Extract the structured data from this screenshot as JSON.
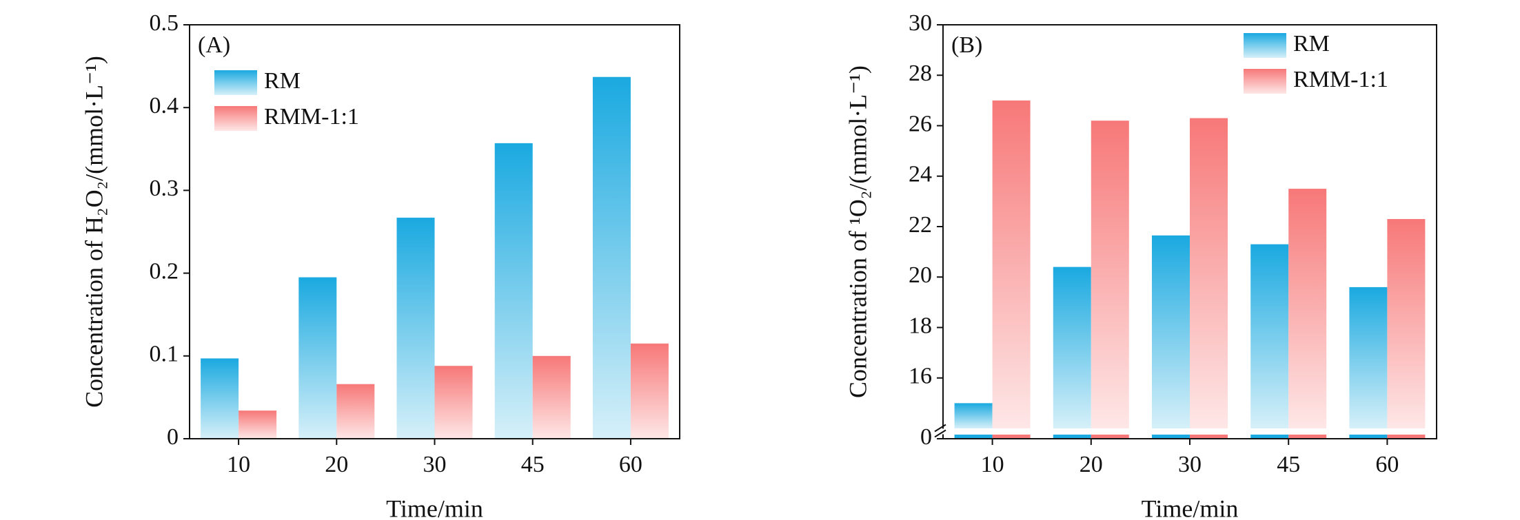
{
  "chart_data": [
    {
      "type": "bar",
      "panel_label": "(A)",
      "x_label": "Time/min",
      "y_label": "Concentration of H₂O₂/(mmol·L⁻¹)",
      "categories": [
        "10",
        "20",
        "30",
        "45",
        "60"
      ],
      "series": [
        {
          "name": "RM",
          "color": "#1aa9e0",
          "values": [
            0.097,
            0.195,
            0.267,
            0.357,
            0.437
          ]
        },
        {
          "name": "RMM-1:1",
          "color": "#f77878",
          "values": [
            0.034,
            0.066,
            0.088,
            0.1,
            0.115
          ]
        }
      ],
      "ylim": [
        0,
        0.5
      ],
      "yticks": [
        0,
        0.1,
        0.2,
        0.3,
        0.4,
        0.5
      ],
      "legend": "upper left"
    },
    {
      "type": "bar",
      "panel_label": "(B)",
      "x_label": "Time/min",
      "y_label": "Concentration of ¹O₂/(mmol·L⁻¹)",
      "categories": [
        "10",
        "20",
        "30",
        "45",
        "60"
      ],
      "series": [
        {
          "name": "RM",
          "color": "#1aa9e0",
          "values": [
            15.0,
            20.4,
            21.65,
            21.3,
            19.6
          ]
        },
        {
          "name": "RMM-1:1",
          "color": "#f77878",
          "values": [
            27.0,
            26.2,
            26.3,
            23.5,
            22.3
          ]
        }
      ],
      "ylim": [
        0,
        30
      ],
      "ybreak": [
        0.5,
        14
      ],
      "yticks": [
        0,
        16,
        18,
        20,
        22,
        24,
        26,
        28,
        30
      ],
      "legend": "upper right"
    }
  ]
}
